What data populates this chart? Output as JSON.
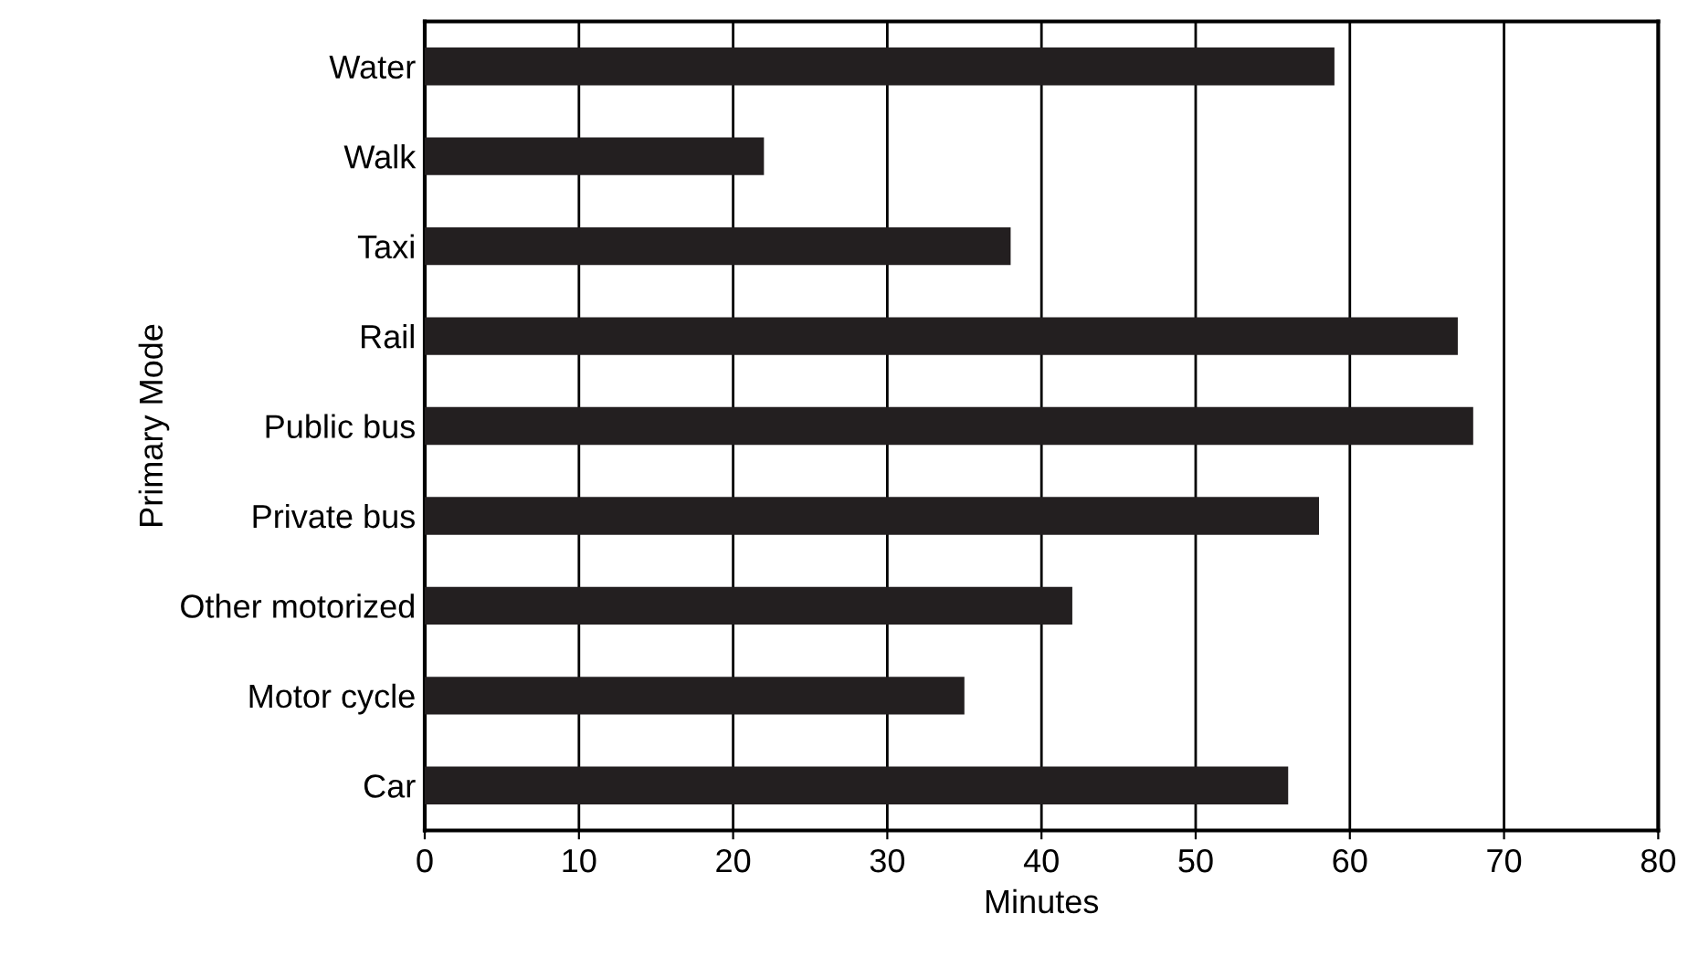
{
  "chart_data": {
    "type": "bar",
    "orientation": "horizontal",
    "xlabel": "Minutes",
    "ylabel": "Primary Mode",
    "categories": [
      "Water",
      "Walk",
      "Taxi",
      "Rail",
      "Public bus",
      "Private bus",
      "Other motorized",
      "Motor cycle",
      "Car"
    ],
    "values": [
      59,
      22,
      38,
      67,
      68,
      58,
      42,
      35,
      56
    ],
    "color": "#231f20",
    "xlim": [
      0,
      80
    ],
    "xticks": [
      0,
      10,
      20,
      30,
      40,
      50,
      60,
      70,
      80
    ],
    "grid": "x"
  }
}
